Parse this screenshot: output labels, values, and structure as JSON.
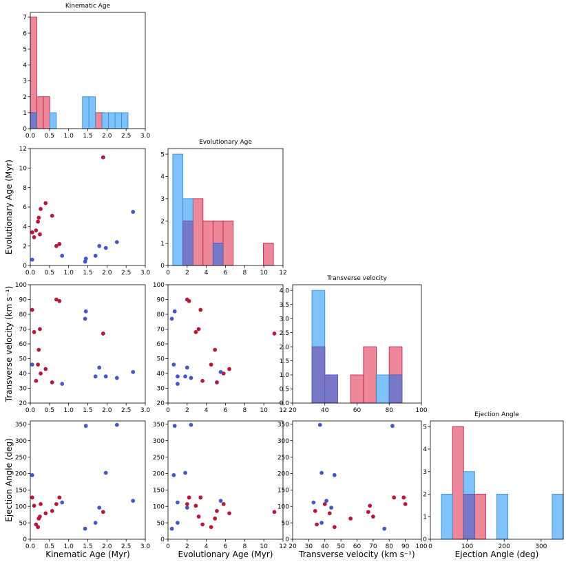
{
  "colors": {
    "red_fill": "#e8677f",
    "red_edge": "#c0284a",
    "blue_fill": "#5ab1f7",
    "blue_edge": "#3a8fd8",
    "overlap_fill": "#7878c8",
    "red_point": "#b8183a",
    "blue_point": "#4556c7"
  },
  "chart_data": {
    "type": "corner-plot",
    "variables": [
      {
        "key": "kin",
        "title": "Kinematic Age",
        "label": "Kinematic Age (Myr)",
        "lim": [
          0,
          3
        ],
        "ticks": [
          0.0,
          0.5,
          1.0,
          1.5,
          2.0,
          2.5,
          3.0
        ],
        "tick_labels": [
          "0.0",
          "0.5",
          "1.0",
          "1.5",
          "2.0",
          "2.5",
          "3.0"
        ]
      },
      {
        "key": "evo",
        "title": "Evolutionary Age",
        "label": "Evolutionary Age (Myr)",
        "lim": [
          0,
          12
        ],
        "ticks": [
          0,
          2,
          4,
          6,
          8,
          10,
          12
        ],
        "tick_labels": [
          "0",
          "2",
          "4",
          "6",
          "8",
          "10",
          "12"
        ]
      },
      {
        "key": "vel",
        "title": "Transverse velocity",
        "label": "Transverse velocity (km s⁻¹)",
        "lim": [
          20,
          100
        ],
        "ticks": [
          20,
          30,
          40,
          50,
          60,
          70,
          80,
          90,
          100
        ],
        "tick_labels": [
          "20",
          "30",
          "40",
          "50",
          "60",
          "70",
          "80",
          "90",
          "100"
        ]
      },
      {
        "key": "ang",
        "title": "Ejection Angle",
        "label": "Ejection Angle (deg)",
        "lim": [
          0,
          360
        ],
        "ticks": [
          0,
          50,
          100,
          150,
          200,
          250,
          300,
          350
        ],
        "tick_labels": [
          "0",
          "50",
          "100",
          "150",
          "200",
          "250",
          "300",
          "350"
        ]
      }
    ],
    "diag_x_ticks": {
      "vel": {
        "ticks": [
          20,
          40,
          60,
          80,
          100
        ],
        "tick_labels": [
          "20",
          "40",
          "60",
          "80",
          "100"
        ]
      },
      "ang": {
        "lim": [
          0,
          360
        ],
        "ticks": [
          0,
          100,
          200,
          300
        ],
        "tick_labels": [
          "0",
          "100",
          "200",
          "300"
        ]
      }
    },
    "histograms": [
      {
        "var": "kin",
        "ylim": [
          0,
          7.3
        ],
        "yticks": [
          0,
          1,
          2,
          3,
          4,
          5,
          6,
          7
        ],
        "red": {
          "edges": [
            0.0,
            0.17,
            0.34,
            0.51,
            0.68,
            0.85,
            1.02,
            1.19,
            1.36,
            1.53,
            1.7,
            1.87,
            2.04,
            2.21,
            2.38,
            2.55,
            2.72
          ],
          "counts": [
            7,
            2,
            2,
            0,
            0,
            0,
            0,
            0,
            0,
            0,
            1,
            0,
            0,
            0,
            0,
            0
          ]
        },
        "blue": {
          "edges": [
            0.0,
            0.17,
            0.34,
            0.51,
            0.68,
            0.85,
            1.02,
            1.19,
            1.36,
            1.53,
            1.7,
            1.87,
            2.04,
            2.21,
            2.38,
            2.55,
            2.72
          ],
          "counts": [
            1,
            0,
            0,
            1,
            0,
            0,
            0,
            0,
            2,
            2,
            0,
            1,
            1,
            1,
            1,
            0
          ]
        }
      },
      {
        "var": "evo",
        "ylim": [
          0,
          5.25
        ],
        "yticks": [
          0,
          1,
          2,
          3,
          4,
          5
        ],
        "red": {
          "edges": [
            0.5,
            1.55,
            2.6,
            3.65,
            4.7,
            5.75,
            6.8,
            7.85,
            8.9,
            9.95,
            11.0
          ],
          "counts": [
            0,
            2,
            3,
            2,
            2,
            2,
            0,
            0,
            0,
            1
          ]
        },
        "blue": {
          "edges": [
            0.5,
            1.55,
            2.6,
            3.65,
            4.7,
            5.75,
            6.8,
            7.85,
            8.9,
            9.95,
            11.0
          ],
          "counts": [
            5,
            3,
            0,
            0,
            1,
            0,
            0,
            0,
            0,
            0
          ]
        }
      },
      {
        "var": "vel",
        "ylim": [
          0,
          4.2
        ],
        "yticks": [
          0.0,
          0.5,
          1.0,
          1.5,
          2.0,
          2.5,
          3.0,
          3.5,
          4.0
        ],
        "red": {
          "edges": [
            32,
            40,
            48,
            56,
            64,
            72,
            80,
            88,
            96
          ],
          "counts": [
            2,
            1,
            0,
            1,
            2,
            0,
            2,
            0
          ]
        },
        "blue": {
          "edges": [
            32,
            40,
            48,
            56,
            64,
            72,
            80,
            88,
            96
          ],
          "counts": [
            4,
            1,
            0,
            0,
            0,
            1,
            1,
            0
          ]
        }
      },
      {
        "var": "ang",
        "ylim": [
          0,
          5.25
        ],
        "yticks": [
          0,
          1,
          2,
          3,
          4,
          5
        ],
        "red": {
          "edges": [
            30,
            60,
            90,
            120,
            150,
            180,
            210,
            240,
            270,
            300,
            330,
            360
          ],
          "counts": [
            0,
            5,
            2,
            2,
            0,
            0,
            0,
            0,
            0,
            0,
            0
          ]
        },
        "blue": {
          "edges": [
            30,
            60,
            90,
            120,
            150,
            180,
            210,
            240,
            270,
            300,
            330,
            360
          ],
          "counts": [
            2,
            0,
            3,
            0,
            0,
            2,
            0,
            0,
            0,
            0,
            2
          ]
        }
      }
    ],
    "points": {
      "red": [
        {
          "kin": 0.05,
          "evo": 3.4,
          "vel": 83,
          "ang": 127
        },
        {
          "kin": 0.1,
          "evo": 2.9,
          "vel": 68,
          "ang": 102
        },
        {
          "kin": 0.15,
          "evo": 3.6,
          "vel": 35,
          "ang": 45
        },
        {
          "kin": 0.2,
          "evo": 4.5,
          "vel": 46,
          "ang": 37
        },
        {
          "kin": 0.22,
          "evo": 4.9,
          "vel": 56,
          "ang": 63
        },
        {
          "kin": 0.25,
          "evo": 3.2,
          "vel": 70,
          "ang": 69
        },
        {
          "kin": 0.27,
          "evo": 5.8,
          "vel": 40,
          "ang": 107
        },
        {
          "kin": 0.4,
          "evo": 6.4,
          "vel": 43,
          "ang": 79
        },
        {
          "kin": 0.57,
          "evo": 5.1,
          "vel": 34,
          "ang": 86
        },
        {
          "kin": 0.68,
          "evo": 2.0,
          "vel": 90,
          "ang": 107
        },
        {
          "kin": 0.76,
          "evo": 2.2,
          "vel": 89,
          "ang": 127
        },
        {
          "kin": 1.9,
          "evo": 11.1,
          "vel": 67,
          "ang": 83
        }
      ],
      "blue": [
        {
          "kin": 0.05,
          "evo": 0.6,
          "vel": 46,
          "ang": 195
        },
        {
          "kin": 0.83,
          "evo": 1.0,
          "vel": 33,
          "ang": 112
        },
        {
          "kin": 1.43,
          "evo": 0.4,
          "vel": 77,
          "ang": 32
        },
        {
          "kin": 1.45,
          "evo": 0.7,
          "vel": 82,
          "ang": 345
        },
        {
          "kin": 1.7,
          "evo": 1.0,
          "vel": 38,
          "ang": 50
        },
        {
          "kin": 1.8,
          "evo": 2.0,
          "vel": 44,
          "ang": 96
        },
        {
          "kin": 1.97,
          "evo": 1.8,
          "vel": 38,
          "ang": 202
        },
        {
          "kin": 2.26,
          "evo": 2.4,
          "vel": 37,
          "ang": 348
        },
        {
          "kin": 2.68,
          "evo": 5.5,
          "vel": 41,
          "ang": 117
        }
      ]
    }
  }
}
